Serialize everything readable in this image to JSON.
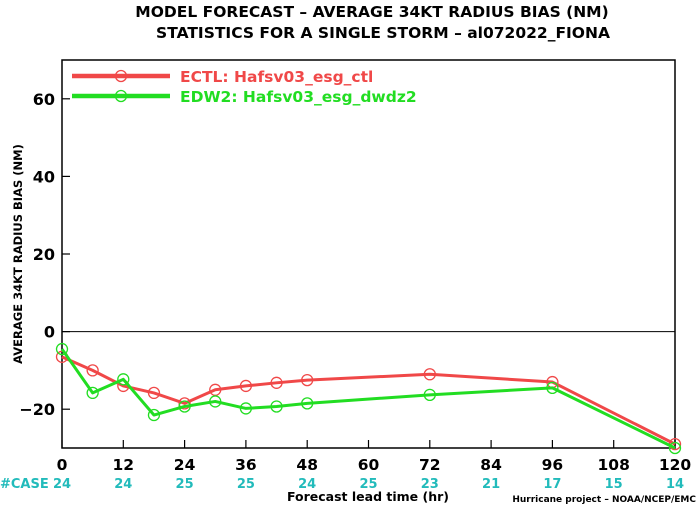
{
  "chart_data": {
    "type": "line",
    "title": "MODEL FORECAST – AVERAGE 34KT RADIUS BIAS (NM)",
    "subtitle": "STATISTICS FOR A SINGLE STORM – al072022_FIONA",
    "xlabel": "Forecast lead time (hr)",
    "ylabel": "AVERAGE 34KT RADIUS BIAS (NM)",
    "xlim": [
      0,
      120
    ],
    "ylim": [
      -30,
      70
    ],
    "xticks": [
      0,
      12,
      24,
      36,
      48,
      60,
      72,
      84,
      96,
      108,
      120
    ],
    "yticks": [
      -20,
      0,
      20,
      40,
      60
    ],
    "ytick_labels": [
      "−20",
      "0",
      "20",
      "40",
      "60"
    ],
    "grid": false,
    "legend_position": "top-left",
    "series": [
      {
        "name": "ECTL: Hafsv03_esg_ctl",
        "color": "#f04848",
        "x": [
          0,
          6,
          12,
          18,
          24,
          30,
          36,
          42,
          48,
          72,
          96,
          120
        ],
        "y": [
          -6.5,
          -10,
          -14,
          -15.8,
          -18.5,
          -15,
          -14,
          -13.2,
          -12.5,
          -11,
          -13,
          -29
        ]
      },
      {
        "name": "EDW2: Hafsv03_esg_dwdz2",
        "color": "#22dd22",
        "x": [
          0,
          6,
          12,
          18,
          24,
          30,
          36,
          42,
          48,
          72,
          96,
          120
        ],
        "y": [
          -4.5,
          -15.8,
          -12.3,
          -21.5,
          -19.3,
          -18,
          -19.8,
          -19.3,
          -18.5,
          -16.3,
          -14.5,
          -30
        ]
      }
    ],
    "case_label": "#CASE",
    "case_counts": [
      {
        "x": 0,
        "n": "24"
      },
      {
        "x": 12,
        "n": "24"
      },
      {
        "x": 24,
        "n": "25"
      },
      {
        "x": 36,
        "n": "25"
      },
      {
        "x": 48,
        "n": "24"
      },
      {
        "x": 60,
        "n": "25"
      },
      {
        "x": 72,
        "n": "23"
      },
      {
        "x": 84,
        "n": "21"
      },
      {
        "x": 96,
        "n": "17"
      },
      {
        "x": 108,
        "n": "15"
      },
      {
        "x": 120,
        "n": "14"
      }
    ],
    "case_color": "#22bbbb",
    "footer": "Hurricane project – NOAA/NCEP/EMC"
  }
}
